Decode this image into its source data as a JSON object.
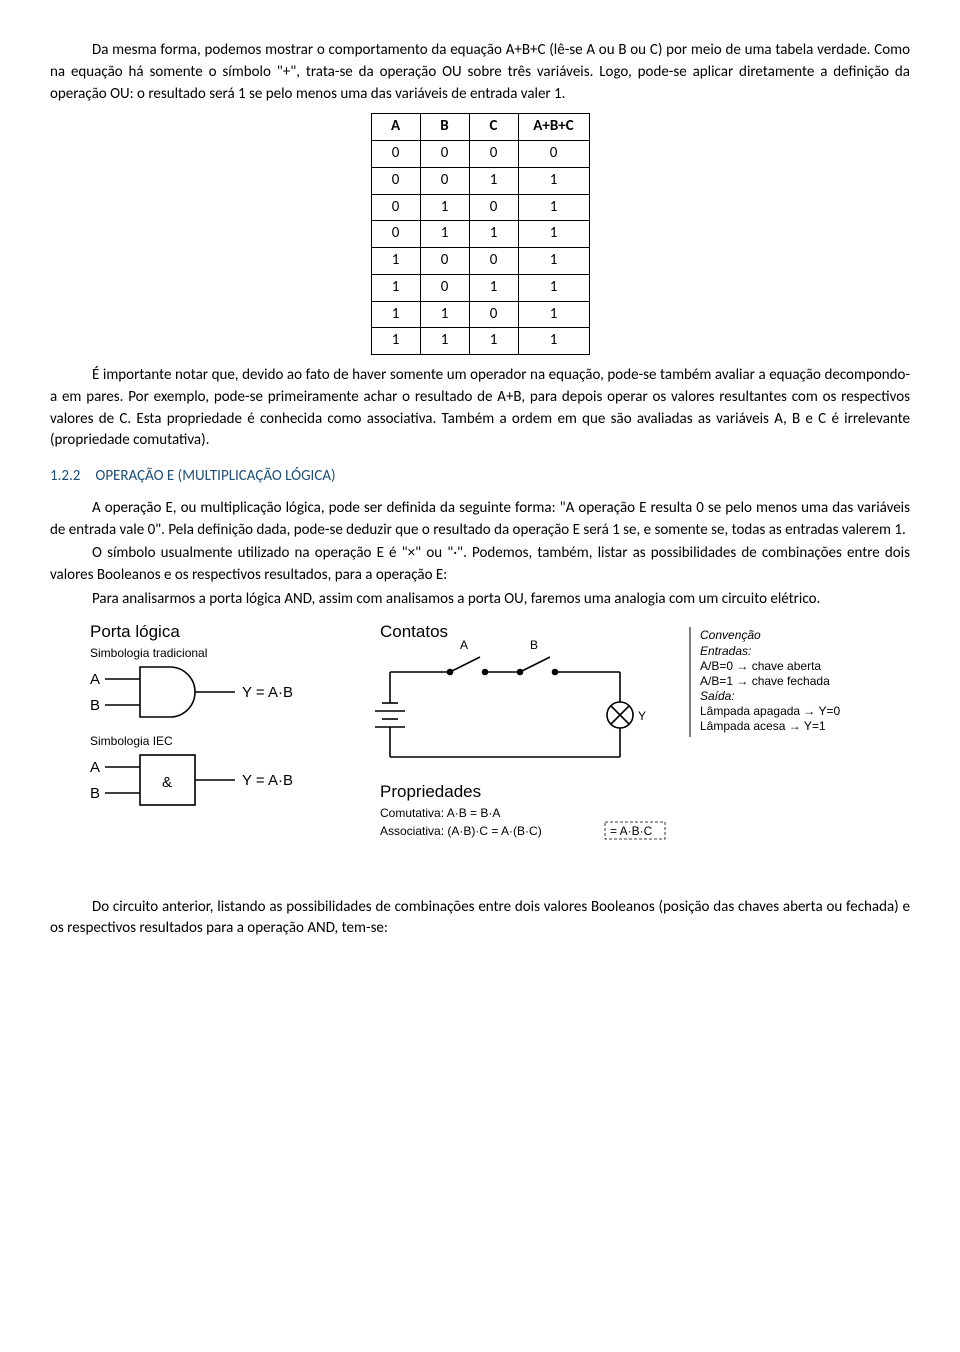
{
  "para1": "Da mesma forma, podemos mostrar o comportamento da equação A+B+C (lê-se A ou B ou C) por meio de uma tabela verdade. Como na equação há somente o símbolo \"+\", trata-se da operação OU sobre três variáveis. Logo, pode-se aplicar diretamente a definição da operação OU: o resultado será 1 se pelo menos uma das variáveis de entrada valer 1.",
  "truth_table": {
    "headers": [
      "A",
      "B",
      "C",
      "A+B+C"
    ],
    "rows": [
      [
        "0",
        "0",
        "0",
        "0"
      ],
      [
        "0",
        "0",
        "1",
        "1"
      ],
      [
        "0",
        "1",
        "0",
        "1"
      ],
      [
        "0",
        "1",
        "1",
        "1"
      ],
      [
        "1",
        "0",
        "0",
        "1"
      ],
      [
        "1",
        "0",
        "1",
        "1"
      ],
      [
        "1",
        "1",
        "0",
        "1"
      ],
      [
        "1",
        "1",
        "1",
        "1"
      ]
    ]
  },
  "para2": "É importante notar que, devido ao fato de haver somente um operador na equação, pode-se também avaliar a equação decompondo-a em pares. Por exemplo, pode-se primeiramente achar o resultado de A+B, para depois operar os valores resultantes com os respectivos valores de C. Esta propriedade é conhecida como associativa. Também a ordem em que são avaliadas as variáveis A, B e C é irrelevante (propriedade comutativa).",
  "section_heading": "1.2.2 OPERAÇÃO E (MULTIPLICAÇÃO LÓGICA)",
  "para3": "A operação E, ou multiplicação lógica, pode ser definida da seguinte forma: \"A operação E resulta 0 se pelo menos uma das variáveis de entrada vale 0\". Pela definição dada, pode-se deduzir que o resultado da operação E será 1 se, e somente se, todas as entradas valerem 1.",
  "para4": "O símbolo usualmente utilizado na operação E é \"×\" ou \"·\". Podemos, também, listar as possibilidades de combinações entre dois valores Booleanos e os respectivos resultados, para a operação E:",
  "para5": "Para analisarmos a porta lógica AND, assim com analisamos a porta OU, faremos uma analogia com um circuito elétrico.",
  "figure": {
    "col1_title": "Porta lógica",
    "simb_trad": "Simbologia tradicional",
    "simb_iec": "Simbologia IEC",
    "input_a": "A",
    "input_b": "B",
    "eq": "Y = A·B",
    "iec_symbol": "&",
    "col2_title": "Contatos",
    "switch_a": "A",
    "switch_b": "B",
    "lamp_y": "Y",
    "conv_title": "Convenção",
    "conv_ent": "Entradas:",
    "conv_l1": "A/B=0 → chave aberta",
    "conv_l2": "A/B=1 → chave fechada",
    "conv_saida": "Saída:",
    "conv_l3": "Lâmpada apagada → Y=0",
    "conv_l4": "Lâmpada acesa    → Y=1",
    "prop_title": "Propriedades",
    "prop_com": "Comutativa: A·B = B·A",
    "prop_ass_left": "Associativa: (A·B)·C = A·(B·C)",
    "prop_ass_right": "= A·B·C"
  },
  "para6": "Do circuito anterior, listando as possibilidades de combinações entre dois valores Booleanos (posição das chaves aberta ou fechada) e os respectivos resultados para a operação AND, tem-se:"
}
